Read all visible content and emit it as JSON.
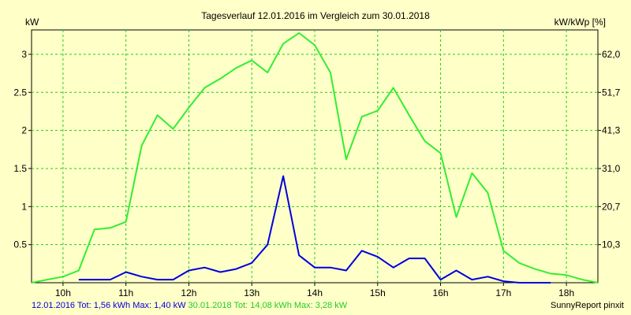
{
  "chart_data": {
    "type": "line",
    "title": "Tagesverlauf 12.01.2016 im Vergleich zum 30.01.2018",
    "ylabel": "kW",
    "y2label": "kW/kWp [%]",
    "xlabel": "",
    "x_ticks": [
      "10h",
      "11h",
      "12h",
      "13h",
      "14h",
      "15h",
      "16h",
      "17h",
      "18h"
    ],
    "y_ticks": [
      "0.5",
      "1",
      "1.5",
      "2",
      "2.5",
      "3"
    ],
    "y2_ticks": [
      "10,3",
      "20,7",
      "31,0",
      "41,3",
      "51,7",
      "62,0"
    ],
    "ylim": [
      0,
      3.32
    ],
    "xlim": [
      9.5,
      18.5
    ],
    "grid": true,
    "series": [
      {
        "name": "30.01.2018",
        "color": "#33ee33",
        "x": [
          9.5,
          9.75,
          10.0,
          10.25,
          10.5,
          10.75,
          11.0,
          11.25,
          11.5,
          11.75,
          12.0,
          12.25,
          12.5,
          12.75,
          13.0,
          13.25,
          13.5,
          13.75,
          14.0,
          14.25,
          14.5,
          14.75,
          15.0,
          15.25,
          15.5,
          15.75,
          16.0,
          16.25,
          16.5,
          16.75,
          17.0,
          17.25,
          17.5,
          17.75,
          18.0,
          18.25,
          18.5
        ],
        "values": [
          0.0,
          0.04,
          0.08,
          0.16,
          0.7,
          0.72,
          0.8,
          1.8,
          2.2,
          2.02,
          2.3,
          2.56,
          2.68,
          2.82,
          2.92,
          2.76,
          3.14,
          3.28,
          3.12,
          2.76,
          1.62,
          2.18,
          2.26,
          2.56,
          2.2,
          1.86,
          1.7,
          0.86,
          1.44,
          1.18,
          0.42,
          0.26,
          0.18,
          0.12,
          0.1,
          0.04,
          0.0
        ]
      },
      {
        "name": "12.01.2016",
        "color": "#0000dd",
        "x": [
          10.25,
          10.5,
          10.75,
          11.0,
          11.25,
          11.5,
          11.75,
          12.0,
          12.25,
          12.5,
          12.75,
          13.0,
          13.25,
          13.5,
          13.75,
          14.0,
          14.25,
          14.5,
          14.75,
          15.0,
          15.25,
          15.5,
          15.75,
          16.0,
          16.25,
          16.5,
          16.75,
          17.0,
          17.25,
          17.5,
          17.75
        ],
        "values": [
          0.04,
          0.04,
          0.04,
          0.14,
          0.08,
          0.04,
          0.04,
          0.16,
          0.2,
          0.14,
          0.18,
          0.26,
          0.5,
          1.4,
          0.36,
          0.2,
          0.2,
          0.16,
          0.42,
          0.34,
          0.2,
          0.32,
          0.32,
          0.04,
          0.16,
          0.04,
          0.08,
          0.02,
          0.0,
          0.0,
          0.0
        ]
      }
    ]
  },
  "footer": {
    "line1": "12.01.2016 Tot: 1,56 kWh Max: 1,40 kW",
    "line2": "30.01.2018 Tot: 14,08 kWh Max: 3,28 kW",
    "credit": "SunnyReport pinxit",
    "color1": "#0000dd",
    "color2": "#22cc22"
  }
}
